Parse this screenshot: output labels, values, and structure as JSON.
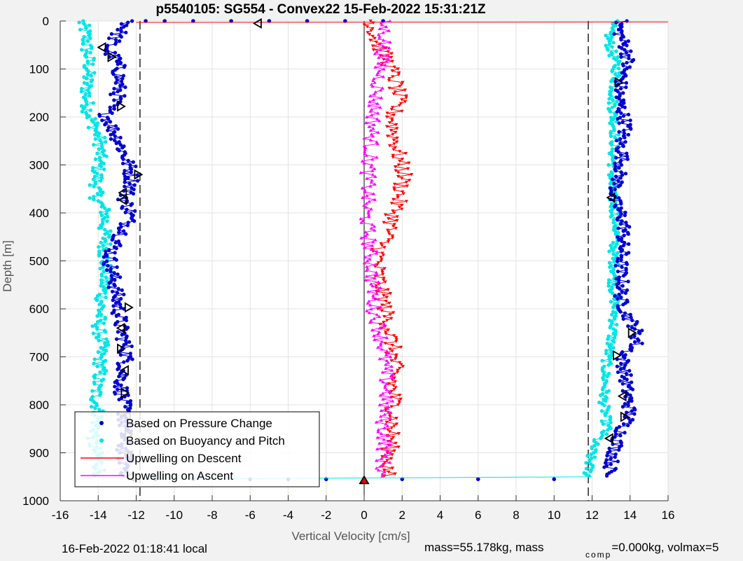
{
  "chart_data": {
    "type": "scatter",
    "title": "p5540105: SG554 - Convex22 15-Feb-2022 15:31:21Z",
    "xlabel": "Vertical Velocity [cm/s]",
    "ylabel": "Depth [m]",
    "xlim": [
      -16,
      16
    ],
    "ylim": [
      0,
      1000
    ],
    "y_reversed": true,
    "x_ticks": [
      "-16",
      "-14",
      "-12",
      "-10",
      "-8",
      "-6",
      "-4",
      "-2",
      "0",
      "2",
      "4",
      "6",
      "8",
      "10",
      "12",
      "14",
      "16"
    ],
    "y_ticks": [
      "0",
      "100",
      "200",
      "300",
      "400",
      "500",
      "600",
      "700",
      "800",
      "900",
      "1000"
    ],
    "grid": true,
    "reference_lines": {
      "dashed_x": [
        -11.8,
        11.8
      ],
      "solid_x": [
        0
      ]
    },
    "legend": {
      "placement": "bottom-left",
      "entries": [
        "Based on Pressure Change",
        "Based on Buoyancy and Pitch",
        "Upwelling on Descent",
        "Upwelling on Ascent"
      ]
    },
    "series": [
      {
        "name": "Based on Pressure Change",
        "color": "#0000d0",
        "marker": "dot",
        "branches": [
          {
            "depth": [
              0,
              20,
              40,
              60,
              80,
              100,
              130,
              160,
              190,
              220,
              250,
              280,
              310,
              340,
              370,
              400,
              430,
              460,
              490,
              520,
              550,
              580,
              610,
              640,
              670,
              700,
              730,
              760,
              790,
              820,
              850,
              880,
              910,
              940,
              950
            ],
            "velocity": [
              -12.3,
              -12.8,
              -13.2,
              -13.5,
              -13.1,
              -12.9,
              -12.9,
              -13.0,
              -13.6,
              -13.3,
              -12.9,
              -12.6,
              -12.3,
              -12.2,
              -12.6,
              -12.3,
              -12.5,
              -13.0,
              -13.4,
              -13.3,
              -13.1,
              -13.0,
              -12.9,
              -12.8,
              -12.6,
              -12.5,
              -12.7,
              -12.8,
              -12.7,
              -12.6,
              -12.6,
              -12.7,
              -12.6,
              -12.5,
              -12.4
            ]
          },
          {
            "depth": [
              0,
              20,
              40,
              60,
              80,
              100,
              130,
              160,
              190,
              220,
              250,
              280,
              310,
              340,
              370,
              400,
              430,
              460,
              490,
              520,
              550,
              580,
              610,
              640,
              670,
              700,
              730,
              760,
              790,
              820,
              850,
              880,
              910,
              940,
              950
            ],
            "velocity": [
              13.5,
              13.4,
              13.6,
              13.8,
              13.9,
              13.7,
              13.5,
              13.4,
              13.6,
              13.8,
              13.5,
              13.6,
              13.5,
              13.3,
              13.1,
              13.5,
              13.7,
              13.6,
              13.6,
              13.5,
              13.6,
              13.5,
              13.8,
              14.3,
              14.4,
              13.6,
              13.7,
              13.8,
              13.9,
              14.0,
              13.6,
              13.3,
              13.1,
              12.9,
              12.8
            ]
          },
          {
            "depth": [
              0,
              0,
              0,
              0,
              0,
              0,
              0,
              0,
              955,
              955,
              955,
              955,
              955,
              955,
              955,
              955
            ],
            "velocity": [
              -11.5,
              -10.5,
              -9.0,
              -7.0,
              -5.0,
              -3.0,
              -1.0,
              1.0,
              -11.0,
              -9.0,
              -6.0,
              -4.0,
              -2.0,
              2.0,
              6.0,
              10.0
            ]
          }
        ]
      },
      {
        "name": "Based on Buoyancy and Pitch",
        "color": "#00e5e5",
        "marker": "dot",
        "branches": [
          {
            "depth": [
              0,
              20,
              40,
              60,
              80,
              100,
              130,
              160,
              190,
              220,
              250,
              280,
              310,
              340,
              370,
              400,
              430,
              460,
              490,
              520,
              550,
              580,
              610,
              640,
              670,
              700,
              730,
              760,
              790,
              820,
              850,
              880,
              910,
              940,
              950
            ],
            "velocity": [
              -14.9,
              -14.7,
              -14.6,
              -14.6,
              -14.5,
              -14.5,
              -14.6,
              -14.6,
              -14.5,
              -14.2,
              -13.9,
              -13.9,
              -14.0,
              -14.1,
              -14.1,
              -13.6,
              -13.7,
              -13.6,
              -13.7,
              -13.6,
              -13.7,
              -13.8,
              -13.9,
              -14.0,
              -13.8,
              -13.9,
              -13.9,
              -14.1,
              -14.1,
              -14.0,
              -14.1,
              -14.3,
              -14.0,
              -13.9,
              -13.9
            ]
          },
          {
            "depth": [
              0,
              20,
              40,
              60,
              80,
              100,
              130,
              160,
              190,
              220,
              250,
              280,
              310,
              340,
              370,
              400,
              430,
              460,
              490,
              520,
              550,
              580,
              610,
              640,
              670,
              700,
              730,
              760,
              790,
              820,
              850,
              880,
              910,
              940,
              950
            ],
            "velocity": [
              13.1,
              12.9,
              12.9,
              13.0,
              13.2,
              13.3,
              13.2,
              13.1,
              13.1,
              13.2,
              13.2,
              13.1,
              13.1,
              13.0,
              13.1,
              13.2,
              13.3,
              13.2,
              13.1,
              13.2,
              13.1,
              13.2,
              13.2,
              13.1,
              13.0,
              12.8,
              12.7,
              12.7,
              12.6,
              12.7,
              12.8,
              12.1,
              11.9,
              11.8,
              11.8
            ]
          }
        ]
      },
      {
        "name": "Upwelling on Descent",
        "color": "#ff0000",
        "marker": "triangle-down",
        "depth": [
          0,
          40,
          80,
          120,
          160,
          200,
          240,
          280,
          320,
          360,
          400,
          440,
          480,
          520,
          560,
          600,
          640,
          680,
          720,
          760,
          800,
          840,
          880,
          920,
          950
        ],
        "velocity": [
          0.4,
          0.6,
          1.2,
          1.6,
          1.8,
          1.5,
          1.6,
          1.8,
          2.1,
          1.9,
          1.6,
          1.3,
          0.8,
          0.7,
          0.9,
          1.1,
          1.3,
          1.5,
          1.6,
          1.5,
          1.6,
          1.5,
          1.4,
          1.3,
          1.2
        ]
      },
      {
        "name": "Upwelling on Ascent",
        "color": "#ff00ff",
        "marker": "triangle-up",
        "depth": [
          0,
          40,
          80,
          120,
          160,
          200,
          240,
          280,
          320,
          360,
          400,
          440,
          480,
          520,
          560,
          600,
          640,
          680,
          720,
          760,
          800,
          840,
          880,
          920,
          950
        ],
        "velocity": [
          1.0,
          1.1,
          0.9,
          0.8,
          0.6,
          0.5,
          0.4,
          0.3,
          0.2,
          0.2,
          0.1,
          0.2,
          0.3,
          0.4,
          0.5,
          0.5,
          0.8,
          1.0,
          1.1,
          1.2,
          1.1,
          1.0,
          1.1,
          1.0,
          0.9
        ]
      }
    ],
    "open_triangle_markers": [
      {
        "velocity": -5.6,
        "depth": 5,
        "dir": "left"
      },
      {
        "velocity": -13.8,
        "depth": 55,
        "dir": "left"
      },
      {
        "velocity": -13.3,
        "depth": 75,
        "dir": "right"
      },
      {
        "velocity": -12.8,
        "depth": 178,
        "dir": "right"
      },
      {
        "velocity": -11.9,
        "depth": 320,
        "dir": "right"
      },
      {
        "velocity": -12.7,
        "depth": 358,
        "dir": "left"
      },
      {
        "velocity": -12.7,
        "depth": 373,
        "dir": "left"
      },
      {
        "velocity": -12.4,
        "depth": 597,
        "dir": "right"
      },
      {
        "velocity": -12.8,
        "depth": 640,
        "dir": "left"
      },
      {
        "velocity": -12.8,
        "depth": 683,
        "dir": "right"
      },
      {
        "velocity": -12.6,
        "depth": 728,
        "dir": "left"
      },
      {
        "velocity": -12.6,
        "depth": 775,
        "dir": "right"
      },
      {
        "velocity": -12.5,
        "depth": 822,
        "dir": "left"
      },
      {
        "velocity": -12.4,
        "depth": 862,
        "dir": "right"
      },
      {
        "velocity": -12.4,
        "depth": 905,
        "dir": "left"
      },
      {
        "velocity": -12.3,
        "depth": 950,
        "dir": "left"
      },
      {
        "velocity": 13.4,
        "depth": 128,
        "dir": "right"
      },
      {
        "velocity": 13.0,
        "depth": 368,
        "dir": "left"
      },
      {
        "velocity": 14.1,
        "depth": 650,
        "dir": "right"
      },
      {
        "velocity": 13.3,
        "depth": 697,
        "dir": "right"
      },
      {
        "velocity": 13.6,
        "depth": 782,
        "dir": "left"
      },
      {
        "velocity": 13.7,
        "depth": 825,
        "dir": "right"
      },
      {
        "velocity": 12.9,
        "depth": 870,
        "dir": "left"
      }
    ],
    "apogee_marker": {
      "velocity": 0,
      "depth": 957,
      "color": "#ff0000"
    }
  },
  "footer": {
    "local_time": "16-Feb-2022 01:18:41 local",
    "mass_text": "mass=55.178kg, mass",
    "comp_sub": "comp",
    "comp_text": "=0.000kg, volmax=5"
  }
}
